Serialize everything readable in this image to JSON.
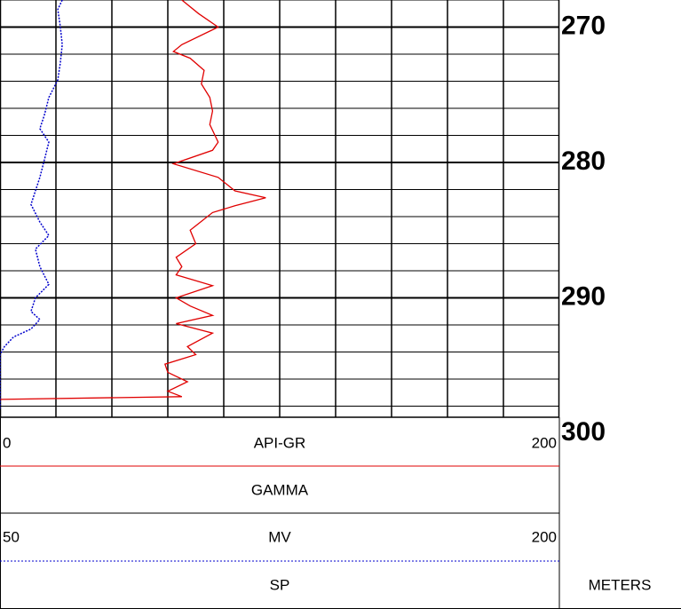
{
  "chart_data": {
    "type": "well-log",
    "depth_unit": "METERS",
    "ylim": [
      268,
      300
    ],
    "yticks": [
      270,
      280,
      290,
      300
    ],
    "grid_yticks": [
      268,
      270,
      272,
      274,
      276,
      278,
      280,
      282,
      284,
      286,
      288,
      290,
      292,
      294,
      296,
      298
    ],
    "grid": true,
    "series": [
      {
        "name": "GAMMA",
        "unit": "API-GR",
        "color": "#e00000",
        "dashed": false,
        "xlim": [
          0,
          200
        ],
        "xticks": [
          0,
          20,
          40,
          60,
          80,
          100,
          120,
          140,
          160,
          180,
          200
        ],
        "depths": [
          268.0,
          269.0,
          270.0,
          271.3,
          271.8,
          272.3,
          273.2,
          274.2,
          275.2,
          276.2,
          277.2,
          278.5,
          279.1,
          280.1,
          281.1,
          282.1,
          282.6,
          283.2,
          283.7,
          285.0,
          286.0,
          287.0,
          287.7,
          288.3,
          289.1,
          290.0,
          290.6,
          291.3,
          291.9,
          292.6,
          293.6,
          294.2,
          294.9,
          295.5,
          296.2,
          296.9,
          297.3,
          297.5
        ],
        "values": [
          65,
          71,
          78,
          65,
          62,
          68,
          73,
          72,
          75,
          76,
          75,
          78,
          76,
          62,
          78,
          84,
          95,
          84,
          76,
          68,
          70,
          63,
          65,
          63,
          76,
          63,
          68,
          76,
          63,
          76,
          67,
          70,
          59,
          60,
          67,
          60,
          65,
          0
        ]
      },
      {
        "name": "SP",
        "unit": "MV",
        "color": "#0000cc",
        "dashed": true,
        "xlim": [
          50,
          200
        ],
        "depths": [
          268.0,
          268.7,
          270.0,
          271.3,
          272.6,
          273.9,
          275.2,
          276.5,
          277.5,
          278.5,
          279.8,
          281.1,
          282.1,
          283.1,
          284.4,
          285.4,
          286.4,
          287.7,
          289.0,
          290.0,
          291.0,
          291.6,
          292.3,
          292.9,
          293.6,
          294.2,
          298.2
        ],
        "values": [
          66.7,
          65.5,
          66.2,
          66.7,
          66.2,
          65.5,
          63.1,
          61.9,
          60.7,
          63.1,
          61.9,
          60.7,
          59.5,
          58.3,
          60.7,
          63.1,
          59.5,
          60.7,
          63.1,
          59.5,
          58.3,
          60.7,
          58.3,
          53.6,
          51.2,
          50,
          50
        ]
      }
    ]
  }
}
